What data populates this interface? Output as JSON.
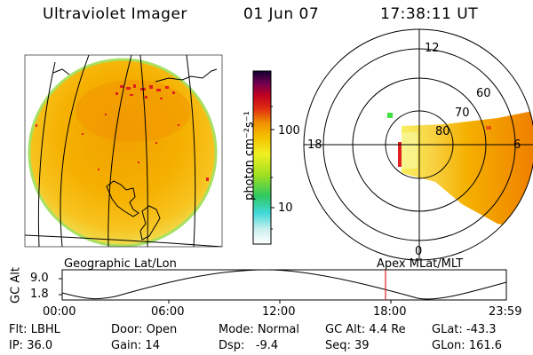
{
  "header": {
    "instrument": "Ultraviolet Imager",
    "date": "01 Jun 07",
    "time": "17:38:11 UT"
  },
  "colorbar": {
    "unit_label": "photon cm⁻²s⁻¹",
    "tick_100": "100",
    "tick_10": "10"
  },
  "polar_plot": {
    "mlt_labels": {
      "top": "12",
      "left": "18",
      "right": "6",
      "bottom": "0"
    },
    "lat_labels": [
      "60",
      "70",
      "80"
    ]
  },
  "geo_label": "Geographic Lat/Lon",
  "apex_label": "Apex MLat/MLT",
  "orbit_plot": {
    "ylabel": "GC Alt",
    "y_ticks": [
      "9.0",
      "1.8"
    ],
    "x_ticks": [
      "00:00",
      "06:00",
      "12:00",
      "18:00",
      "23:59"
    ]
  },
  "info": {
    "row1": [
      {
        "key": "Flt:",
        "value": "LBHL"
      },
      {
        "key": "Door:",
        "value": "Open"
      },
      {
        "key": "Mode:",
        "value": "Normal"
      },
      {
        "key": "GC Alt:",
        "value": "4.4 Re"
      },
      {
        "key": "GLat:",
        "value": "-43.3"
      }
    ],
    "row2": [
      {
        "key": "IP:",
        "value": "36.0"
      },
      {
        "key": "Gain:",
        "value": "14"
      },
      {
        "key": "Dsp:",
        "value": "-9.4"
      },
      {
        "key": "Seq:",
        "value": "39"
      },
      {
        "key": "GLon:",
        "value": "161.6"
      }
    ]
  },
  "colors": {
    "disk_main": "#f5b400",
    "disk_bright": "#f08c00",
    "disk_rim": "#bfe05a",
    "hot_pixels": "#e02020"
  }
}
